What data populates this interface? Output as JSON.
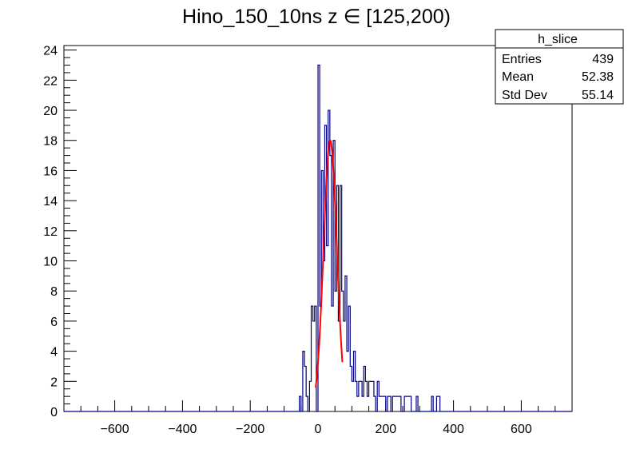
{
  "chart_data": {
    "type": "histogram",
    "title": "Hino_150_10ns z  ∈ [125,200)",
    "xlabel": "",
    "ylabel": "",
    "xlim": [
      -750,
      750
    ],
    "ylim": [
      0,
      24.3
    ],
    "x_ticks": [
      -600,
      -400,
      -200,
      0,
      200,
      400,
      600
    ],
    "y_ticks": [
      0,
      2,
      4,
      6,
      8,
      10,
      12,
      14,
      16,
      18,
      20,
      22,
      24
    ],
    "grid": false,
    "bin_width": 5,
    "histogram_color": "#000080",
    "fit_color": "#ff0000",
    "bins": [
      [
        -55,
        1
      ],
      [
        -50,
        0
      ],
      [
        -45,
        4
      ],
      [
        -40,
        3
      ],
      [
        -35,
        1
      ],
      [
        -30,
        0
      ],
      [
        -25,
        2
      ],
      [
        -20,
        7
      ],
      [
        -15,
        6
      ],
      [
        -10,
        7
      ],
      [
        -5,
        0
      ],
      [
        0,
        23
      ],
      [
        5,
        7
      ],
      [
        10,
        16
      ],
      [
        15,
        10
      ],
      [
        20,
        19
      ],
      [
        25,
        11
      ],
      [
        30,
        20
      ],
      [
        35,
        17
      ],
      [
        40,
        7
      ],
      [
        45,
        18
      ],
      [
        50,
        8
      ],
      [
        55,
        15
      ],
      [
        60,
        6
      ],
      [
        65,
        15
      ],
      [
        70,
        8
      ],
      [
        75,
        6
      ],
      [
        80,
        9
      ],
      [
        85,
        4
      ],
      [
        90,
        7
      ],
      [
        95,
        3
      ],
      [
        100,
        2
      ],
      [
        105,
        4
      ],
      [
        110,
        2
      ],
      [
        115,
        1
      ],
      [
        120,
        2
      ],
      [
        125,
        2
      ],
      [
        130,
        1
      ],
      [
        135,
        3
      ],
      [
        140,
        2
      ],
      [
        145,
        1
      ],
      [
        150,
        2
      ],
      [
        155,
        2
      ],
      [
        160,
        2
      ],
      [
        165,
        1
      ],
      [
        170,
        0
      ],
      [
        175,
        2
      ],
      [
        180,
        1
      ],
      [
        185,
        1
      ],
      [
        190,
        1
      ],
      [
        195,
        1
      ],
      [
        200,
        0
      ],
      [
        205,
        1
      ],
      [
        210,
        1
      ],
      [
        215,
        0
      ],
      [
        220,
        1
      ],
      [
        225,
        1
      ],
      [
        230,
        1
      ],
      [
        235,
        1
      ],
      [
        240,
        1
      ],
      [
        245,
        0
      ],
      [
        250,
        0
      ],
      [
        255,
        1
      ],
      [
        260,
        1
      ],
      [
        265,
        1
      ],
      [
        270,
        1
      ],
      [
        275,
        0
      ],
      [
        280,
        0
      ],
      [
        285,
        0
      ],
      [
        290,
        1
      ],
      [
        295,
        0
      ],
      [
        300,
        0
      ],
      [
        305,
        0
      ],
      [
        310,
        0
      ],
      [
        315,
        0
      ],
      [
        320,
        0
      ],
      [
        325,
        0
      ],
      [
        330,
        0
      ],
      [
        335,
        1
      ],
      [
        340,
        0
      ],
      [
        345,
        0
      ],
      [
        350,
        1
      ],
      [
        355,
        1
      ],
      [
        360,
        0
      ]
    ],
    "fit_curve": {
      "type": "gaussian",
      "amplitude": 18.0,
      "mean": 36,
      "sigma": 19.5,
      "range": [
        -7,
        72
      ]
    }
  },
  "stats": {
    "name": "h_slice",
    "rows": [
      {
        "label": "Entries",
        "value": "439"
      },
      {
        "label": "Mean",
        "value": "52.38"
      },
      {
        "label": "Std Dev",
        "value": "55.14"
      }
    ]
  }
}
